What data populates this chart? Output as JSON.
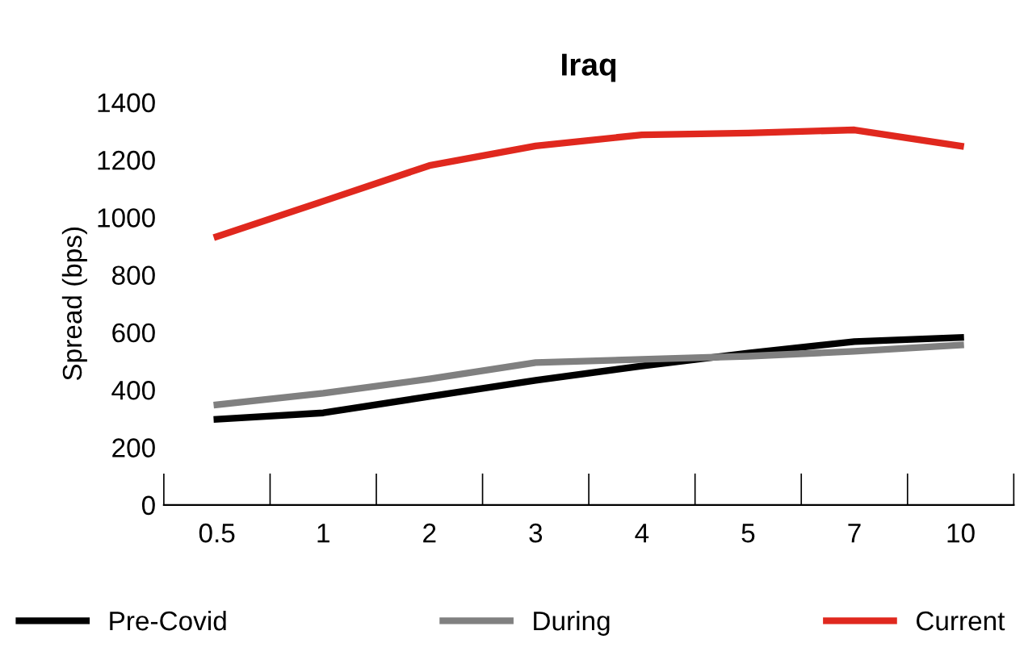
{
  "chart_data": {
    "type": "line",
    "title": "Iraq",
    "ylabel": "Spread (bps)",
    "categories": [
      "0.5",
      "1",
      "2",
      "3",
      "4",
      "5",
      "7",
      "10"
    ],
    "series": [
      {
        "name": "Pre-Covid",
        "color": "#000000",
        "values": [
          298,
          320,
          377,
          433,
          483,
          528,
          568,
          582
        ]
      },
      {
        "name": "During",
        "color": "#808080",
        "values": [
          348,
          388,
          438,
          495,
          506,
          517,
          534,
          556
        ]
      },
      {
        "name": "Current",
        "color": "#e0281e",
        "values": [
          933,
          1056,
          1180,
          1248,
          1287,
          1293,
          1304,
          1248
        ]
      }
    ],
    "ylim": [
      0,
      1400
    ],
    "yticks": [
      0,
      200,
      400,
      600,
      800,
      1000,
      1200,
      1400
    ],
    "grid": false,
    "legend": "bottom",
    "marker": "none",
    "line_style": "solid"
  }
}
